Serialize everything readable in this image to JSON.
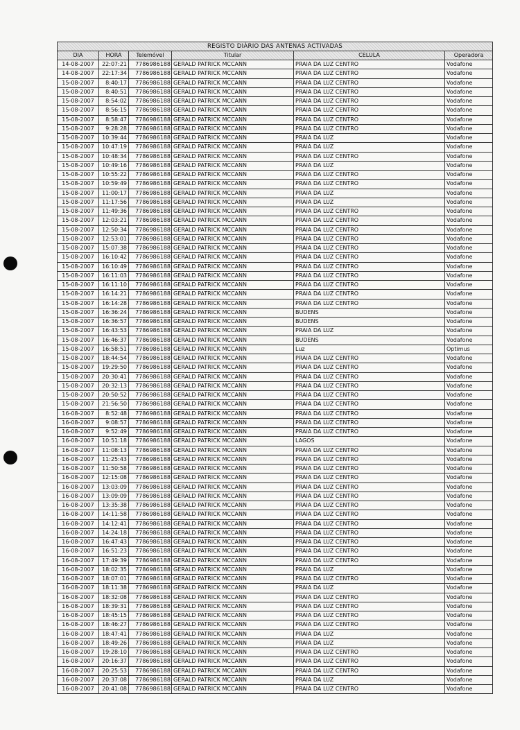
{
  "document": {
    "title": "REGISTO DIÁRIO DAS ANTENAS ACTIVADAS",
    "columns": [
      "DIA",
      "HORA",
      "Telemóvel",
      "Titular",
      "CELULA",
      "Operadora"
    ],
    "rows": [
      [
        "14-08-2007",
        "22:07:21",
        "7786986188",
        "GERALD PATRICK MCCANN",
        "PRAIA DA LUZ CENTRO",
        "Vodafone"
      ],
      [
        "14-08-2007",
        "22:17:34",
        "7786986188",
        "GERALD PATRICK MCCANN",
        "PRAIA DA LUZ CENTRO",
        "Vodafone"
      ],
      [
        "15-08-2007",
        "8:40:17",
        "7786986188",
        "GERALD PATRICK MCCANN",
        "PRAIA DA LUZ CENTRO",
        "Vodafone"
      ],
      [
        "15-08-2007",
        "8:40:51",
        "7786986188",
        "GERALD PATRICK MCCANN",
        "PRAIA DA LUZ CENTRO",
        "Vodafone"
      ],
      [
        "15-08-2007",
        "8:54:02",
        "7786986188",
        "GERALD PATRICK MCCANN",
        "PRAIA DA LUZ CENTRO",
        "Vodafone"
      ],
      [
        "15-08-2007",
        "8:56:15",
        "7786986188",
        "GERALD PATRICK MCCANN",
        "PRAIA DA LUZ CENTRO",
        "Vodafone"
      ],
      [
        "15-08-2007",
        "8:58:47",
        "7786986188",
        "GERALD PATRICK MCCANN",
        "PRAIA DA LUZ CENTRO",
        "Vodafone"
      ],
      [
        "15-08-2007",
        "9:28:28",
        "7786986188",
        "GERALD PATRICK MCCANN",
        "PRAIA DA LUZ CENTRO",
        "Vodafone"
      ],
      [
        "15-08-2007",
        "10:39:44",
        "7786986188",
        "GERALD PATRICK MCCANN",
        "PRAIA DA LUZ",
        "Vodafone"
      ],
      [
        "15-08-2007",
        "10:47:19",
        "7786986188",
        "GERALD PATRICK MCCANN",
        "PRAIA DA LUZ",
        "Vodafone"
      ],
      [
        "15-08-2007",
        "10:48:34",
        "7786986188",
        "GERALD PATRICK MCCANN",
        "PRAIA DA LUZ CENTRO",
        "Vodafone"
      ],
      [
        "15-08-2007",
        "10:49:16",
        "7786986188",
        "GERALD PATRICK MCCANN",
        "PRAIA DA LUZ",
        "Vodafone"
      ],
      [
        "15-08-2007",
        "10:55:22",
        "7786986188",
        "GERALD PATRICK MCCANN",
        "PRAIA DA LUZ CENTRO",
        "Vodafone"
      ],
      [
        "15-08-2007",
        "10:59:49",
        "7786986188",
        "GERALD PATRICK MCCANN",
        "PRAIA DA LUZ CENTRO",
        "Vodafone"
      ],
      [
        "15-08-2007",
        "11:00:17",
        "7786986188",
        "GERALD PATRICK MCCANN",
        "PRAIA DA LUZ",
        "Vodafone"
      ],
      [
        "15-08-2007",
        "11:17:56",
        "7786986188",
        "GERALD PATRICK MCCANN",
        "PRAIA DA LUZ",
        "Vodafone"
      ],
      [
        "15-08-2007",
        "11:49:36",
        "7786986188",
        "GERALD PATRICK MCCANN",
        "PRAIA DA LUZ CENTRO",
        "Vodafone"
      ],
      [
        "15-08-2007",
        "12:03:21",
        "7786986188",
        "GERALD PATRICK MCCANN",
        "PRAIA DA LUZ CENTRO",
        "Vodafone"
      ],
      [
        "15-08-2007",
        "12:50:34",
        "7786986188",
        "GERALD PATRICK MCCANN",
        "PRAIA DA LUZ CENTRO",
        "Vodafone"
      ],
      [
        "15-08-2007",
        "12:53:01",
        "7786986188",
        "GERALD PATRICK MCCANN",
        "PRAIA DA LUZ CENTRO",
        "Vodafone"
      ],
      [
        "15-08-2007",
        "15:07:38",
        "7786986188",
        "GERALD PATRICK MCCANN",
        "PRAIA DA LUZ CENTRO",
        "Vodafone"
      ],
      [
        "15-08-2007",
        "16:10:42",
        "7786986188",
        "GERALD PATRICK MCCANN",
        "PRAIA DA LUZ CENTRO",
        "Vodafone"
      ],
      [
        "15-08-2007",
        "16:10:49",
        "7786986188",
        "GERALD PATRICK MCCANN",
        "PRAIA DA LUZ CENTRO",
        "Vodafone"
      ],
      [
        "15-08-2007",
        "16:11:03",
        "7786986188",
        "GERALD PATRICK MCCANN",
        "PRAIA DA LUZ CENTRO",
        "Vodafone"
      ],
      [
        "15-08-2007",
        "16:11:10",
        "7786986188",
        "GERALD PATRICK MCCANN",
        "PRAIA DA LUZ CENTRO",
        "Vodafone"
      ],
      [
        "15-08-2007",
        "16:14:21",
        "7786986188",
        "GERALD PATRICK MCCANN",
        "PRAIA DA LUZ CENTRO",
        "Vodafone"
      ],
      [
        "15-08-2007",
        "16:14:28",
        "7786986188",
        "GERALD PATRICK MCCANN",
        "PRAIA DA LUZ CENTRO",
        "Vodafone"
      ],
      [
        "15-08-2007",
        "16:36:24",
        "7786986188",
        "GERALD PATRICK MCCANN",
        "BUDENS",
        "Vodafone"
      ],
      [
        "15-08-2007",
        "16:36:57",
        "7786986188",
        "GERALD PATRICK MCCANN",
        "BUDENS",
        "Vodafone"
      ],
      [
        "15-08-2007",
        "16:43:53",
        "7786986188",
        "GERALD PATRICK MCCANN",
        "PRAIA DA LUZ",
        "Vodafone"
      ],
      [
        "15-08-2007",
        "16:46:37",
        "7786986188",
        "GERALD PATRICK MCCANN",
        "BUDENS",
        "Vodafone"
      ],
      [
        "15-08-2007",
        "16:58:51",
        "7786986188",
        "GERALD PATRICK MCCANN",
        "Luz",
        "Optimus"
      ],
      [
        "15-08-2007",
        "18:44:54",
        "7786986188",
        "GERALD PATRICK MCCANN",
        "PRAIA DA LUZ CENTRO",
        "Vodafone"
      ],
      [
        "15-08-2007",
        "19:29:50",
        "7786986188",
        "GERALD PATRICK MCCANN",
        "PRAIA DA LUZ CENTRO",
        "Vodafone"
      ],
      [
        "15-08-2007",
        "20:30:41",
        "7786986188",
        "GERALD PATRICK MCCANN",
        "PRAIA DA LUZ CENTRO",
        "Vodafone"
      ],
      [
        "15-08-2007",
        "20:32:13",
        "7786986188",
        "GERALD PATRICK MCCANN",
        "PRAIA DA LUZ CENTRO",
        "Vodafone"
      ],
      [
        "15-08-2007",
        "20:50:52",
        "7786986188",
        "GERALD PATRICK MCCANN",
        "PRAIA DA LUZ CENTRO",
        "Vodafone"
      ],
      [
        "15-08-2007",
        "21:56:50",
        "7786986188",
        "GERALD PATRICK MCCANN",
        "PRAIA DA LUZ CENTRO",
        "Vodafone"
      ],
      [
        "16-08-2007",
        "8:52:48",
        "7786986188",
        "GERALD PATRICK MCCANN",
        "PRAIA DA LUZ CENTRO",
        "Vodafone"
      ],
      [
        "16-08-2007",
        "9:08:57",
        "7786986188",
        "GERALD PATRICK MCCANN",
        "PRAIA DA LUZ CENTRO",
        "Vodafone"
      ],
      [
        "16-08-2007",
        "9:52:49",
        "7786986188",
        "GERALD PATRICK MCCANN",
        "PRAIA DA LUZ CENTRO",
        "Vodafone"
      ],
      [
        "16-08-2007",
        "10:51:18",
        "7786986188",
        "GERALD PATRICK MCCANN",
        "LAGOS",
        "Vodafone"
      ],
      [
        "16-08-2007",
        "11:08:13",
        "7786986188",
        "GERALD PATRICK MCCANN",
        "PRAIA DA LUZ CENTRO",
        "Vodafone"
      ],
      [
        "16-08-2007",
        "11:25:43",
        "7786986188",
        "GERALD PATRICK MCCANN",
        "PRAIA DA LUZ CENTRO",
        "Vodafone"
      ],
      [
        "16-08-2007",
        "11:50:58",
        "7786986188",
        "GERALD PATRICK MCCANN",
        "PRAIA DA LUZ CENTRO",
        "Vodafone"
      ],
      [
        "16-08-2007",
        "12:15:08",
        "7786986188",
        "GERALD PATRICK MCCANN",
        "PRAIA DA LUZ CENTRO",
        "Vodafone"
      ],
      [
        "16-08-2007",
        "13:03:09",
        "7786986188",
        "GERALD PATRICK MCCANN",
        "PRAIA DA LUZ CENTRO",
        "Vodafone"
      ],
      [
        "16-08-2007",
        "13:09:09",
        "7786986188",
        "GERALD PATRICK MCCANN",
        "PRAIA DA LUZ CENTRO",
        "Vodafone"
      ],
      [
        "16-08-2007",
        "13:35:38",
        "7786986188",
        "GERALD PATRICK MCCANN",
        "PRAIA DA LUZ CENTRO",
        "Vodafone"
      ],
      [
        "16-08-2007",
        "14:11:58",
        "7786986188",
        "GERALD PATRICK MCCANN",
        "PRAIA DA LUZ CENTRO",
        "Vodafone"
      ],
      [
        "16-08-2007",
        "14:12:41",
        "7786986188",
        "GERALD PATRICK MCCANN",
        "PRAIA DA LUZ CENTRO",
        "Vodafone"
      ],
      [
        "16-08-2007",
        "14:24:18",
        "7786986188",
        "GERALD PATRICK MCCANN",
        "PRAIA DA LUZ CENTRO",
        "Vodafone"
      ],
      [
        "16-08-2007",
        "16:47:43",
        "7786986188",
        "GERALD PATRICK MCCANN",
        "PRAIA DA LUZ CENTRO",
        "Vodafone"
      ],
      [
        "16-08-2007",
        "16:51:23",
        "7786986188",
        "GERALD PATRICK MCCANN",
        "PRAIA DA LUZ CENTRO",
        "Vodafone"
      ],
      [
        "16-08-2007",
        "17:49:39",
        "7786986188",
        "GERALD PATRICK MCCANN",
        "PRAIA DA LUZ CENTRO",
        "Vodafone"
      ],
      [
        "16-08-2007",
        "18:02:35",
        "7786986188",
        "GERALD PATRICK MCCANN",
        "PRAIA DA LUZ",
        "Vodafone"
      ],
      [
        "16-08-2007",
        "18:07:01",
        "7786986188",
        "GERALD PATRICK MCCANN",
        "PRAIA DA LUZ CENTRO",
        "Vodafone"
      ],
      [
        "16-08-2007",
        "18:11:38",
        "7786986188",
        "GERALD PATRICK MCCANN",
        "PRAIA DA LUZ",
        "Vodafone"
      ],
      [
        "16-08-2007",
        "18:32:08",
        "7786986188",
        "GERALD PATRICK MCCANN",
        "PRAIA DA LUZ CENTRO",
        "Vodafone"
      ],
      [
        "16-08-2007",
        "18:39:31",
        "7786986188",
        "GERALD PATRICK MCCANN",
        "PRAIA DA LUZ CENTRO",
        "Vodafone"
      ],
      [
        "16-08-2007",
        "18:45:15",
        "7786986188",
        "GERALD PATRICK MCCANN",
        "PRAIA DA LUZ CENTRO",
        "Vodafone"
      ],
      [
        "16-08-2007",
        "18:46:27",
        "7786986188",
        "GERALD PATRICK MCCANN",
        "PRAIA DA LUZ CENTRO",
        "Vodafone"
      ],
      [
        "16-08-2007",
        "18:47:41",
        "7786986188",
        "GERALD PATRICK MCCANN",
        "PRAIA DA LUZ",
        "Vodafone"
      ],
      [
        "16-08-2007",
        "18:49:26",
        "7786986188",
        "GERALD PATRICK MCCANN",
        "PRAIA DA LUZ",
        "Vodafone"
      ],
      [
        "16-08-2007",
        "19:28:10",
        "7786986188",
        "GERALD PATRICK MCCANN",
        "PRAIA DA LUZ CENTRO",
        "Vodafone"
      ],
      [
        "16-08-2007",
        "20:16:37",
        "7786986188",
        "GERALD PATRICK MCCANN",
        "PRAIA DA LUZ CENTRO",
        "Vodafone"
      ],
      [
        "16-08-2007",
        "20:25:53",
        "7786986188",
        "GERALD PATRICK MCCANN",
        "PRAIA DA LUZ CENTRO",
        "Vodafone"
      ],
      [
        "16-08-2007",
        "20:37:08",
        "7786986188",
        "GERALD PATRICK MCCANN",
        "PRAIA DA LUZ",
        "Vodafone"
      ],
      [
        "16-08-2007",
        "20:41:08",
        "7786986188",
        "GERALD PATRICK MCCANN",
        "PRAIA DA LUZ CENTRO",
        "Vodafone"
      ]
    ]
  }
}
